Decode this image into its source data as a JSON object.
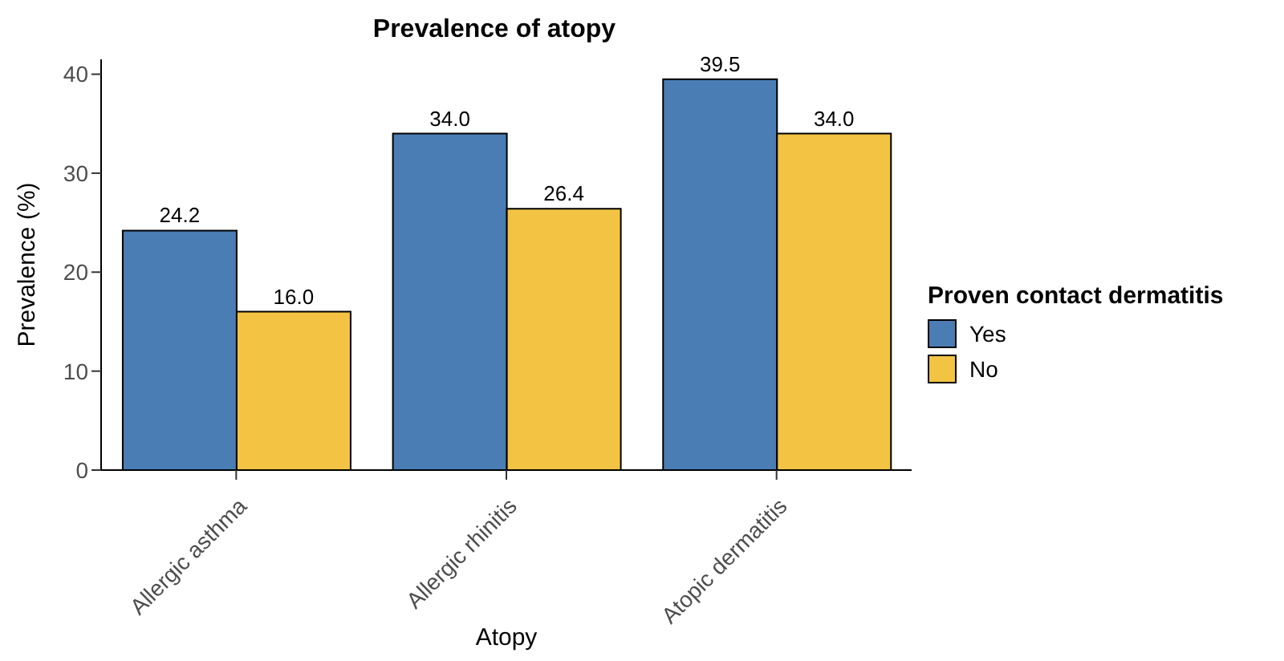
{
  "chart_data": {
    "type": "bar",
    "title": "Prevalence of atopy",
    "xlabel": "Atopy",
    "ylabel": "Prevalence (%)",
    "legend_title": "Proven contact dermatitis",
    "categories": [
      "Allergic asthma",
      "Allergic rhinitis",
      "Atopic dermatitis"
    ],
    "series": [
      {
        "name": "Yes",
        "color": "#4a7db4",
        "values": [
          24.2,
          34.0,
          39.5
        ],
        "value_labels": [
          "24.2",
          "34.0",
          "39.5"
        ]
      },
      {
        "name": "No",
        "color": "#f3c443",
        "values": [
          16.0,
          26.4,
          34.0
        ],
        "value_labels": [
          "16.0",
          "26.4",
          "34.0"
        ]
      }
    ],
    "ylim": [
      0,
      41.5
    ],
    "yticks": [
      0,
      10,
      20,
      30,
      40
    ],
    "grid": false,
    "legend": "right"
  }
}
